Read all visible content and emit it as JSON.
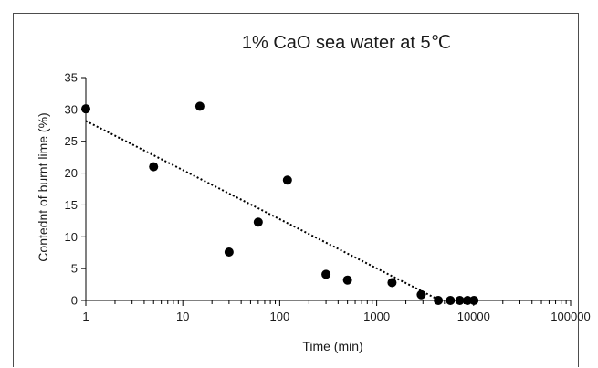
{
  "chart_data": {
    "type": "scatter",
    "title": "1% CaO sea water at 5℃",
    "xlabel": "Time (min)",
    "ylabel": "Contednt of burnt lime (%)",
    "x_scale": "log",
    "xlim": [
      1,
      100000
    ],
    "ylim": [
      0,
      35
    ],
    "x_ticks": [
      1,
      10,
      100,
      1000,
      10000,
      100000
    ],
    "x_tick_labels": [
      "1",
      "10",
      "100",
      "1000",
      "10000",
      "100000"
    ],
    "y_ticks": [
      0,
      5,
      10,
      15,
      20,
      25,
      30,
      35
    ],
    "y_tick_labels": [
      "0",
      "5",
      "10",
      "15",
      "20",
      "25",
      "30",
      "35"
    ],
    "grid": false,
    "legend": "none",
    "series": [
      {
        "marker_color": "#000000",
        "points": [
          {
            "x": 1,
            "y": 30.1
          },
          {
            "x": 5,
            "y": 21
          },
          {
            "x": 15,
            "y": 30.5
          },
          {
            "x": 30,
            "y": 7.6
          },
          {
            "x": 60,
            "y": 12.3
          },
          {
            "x": 120,
            "y": 18.9
          },
          {
            "x": 300,
            "y": 4.1
          },
          {
            "x": 500,
            "y": 3.2
          },
          {
            "x": 1440,
            "y": 2.8
          },
          {
            "x": 2880,
            "y": 0.9
          },
          {
            "x": 4320,
            "y": 0
          },
          {
            "x": 5760,
            "y": 0
          },
          {
            "x": 7200,
            "y": 0
          },
          {
            "x": 8640,
            "y": 0
          },
          {
            "x": 10080,
            "y": 0
          }
        ]
      }
    ],
    "trendline": {
      "type": "logarithmic",
      "style": "dotted",
      "color": "#000000",
      "from": {
        "x": 1,
        "y": 28.2
      },
      "to": {
        "x": 4500,
        "y": 0
      }
    }
  }
}
